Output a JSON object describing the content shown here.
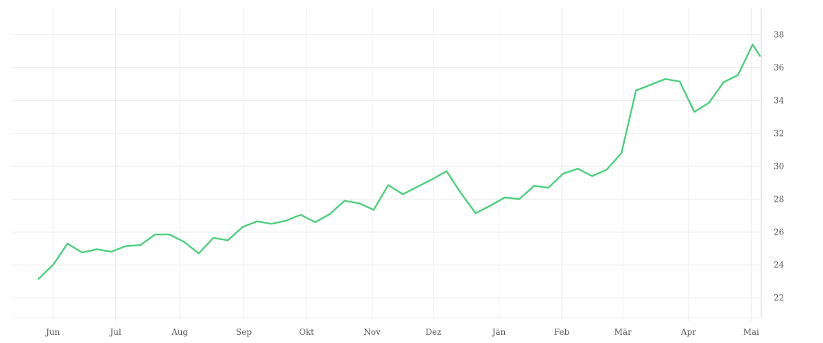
{
  "chart_data": {
    "type": "line",
    "title": "",
    "xlabel": "",
    "ylabel": "",
    "x_tick_labels": [
      "Jun",
      "Jul",
      "Aug",
      "Sep",
      "Okt",
      "Nov",
      "Dez",
      "Jän",
      "Feb",
      "Mär",
      "Apr",
      "Mai"
    ],
    "y_ticks": [
      22,
      24,
      26,
      28,
      30,
      32,
      34,
      36,
      38
    ],
    "ylim": [
      20.8,
      39.6
    ],
    "y_axis_position": "right",
    "grid": true,
    "legend": "none",
    "x_unit": "weeks since first point",
    "x_tick_positions_weeks": [
      1.0,
      5.3,
      9.7,
      14.1,
      18.4,
      22.9,
      27.1,
      31.6,
      35.9,
      40.1,
      44.6,
      48.9
    ],
    "series": [
      {
        "color": "#4cd07d",
        "x": [
          0,
          1,
          2,
          3,
          4,
          5,
          6,
          7,
          8,
          9,
          10,
          11,
          12,
          13,
          14,
          15,
          16,
          17,
          18,
          19,
          20,
          21,
          22,
          23,
          24,
          25,
          26,
          27,
          28,
          29,
          30,
          31,
          32,
          33,
          34,
          35,
          36,
          37,
          38,
          39,
          40,
          41,
          42,
          43,
          44,
          45,
          46,
          47,
          48,
          49,
          49.5
        ],
        "values": [
          23.15,
          24.0,
          25.3,
          24.75,
          24.95,
          24.8,
          25.15,
          25.2,
          25.85,
          25.85,
          25.4,
          24.7,
          25.65,
          25.5,
          26.3,
          26.65,
          26.5,
          26.7,
          27.05,
          26.6,
          27.1,
          27.9,
          27.75,
          27.35,
          28.85,
          28.3,
          28.75,
          29.2,
          29.7,
          28.35,
          27.15,
          27.6,
          28.1,
          28.0,
          28.8,
          28.7,
          29.55,
          29.85,
          29.4,
          29.8,
          30.8,
          34.6,
          34.95,
          35.3,
          35.15,
          33.3,
          33.85,
          35.1,
          35.55,
          37.4,
          36.7
        ]
      }
    ]
  }
}
